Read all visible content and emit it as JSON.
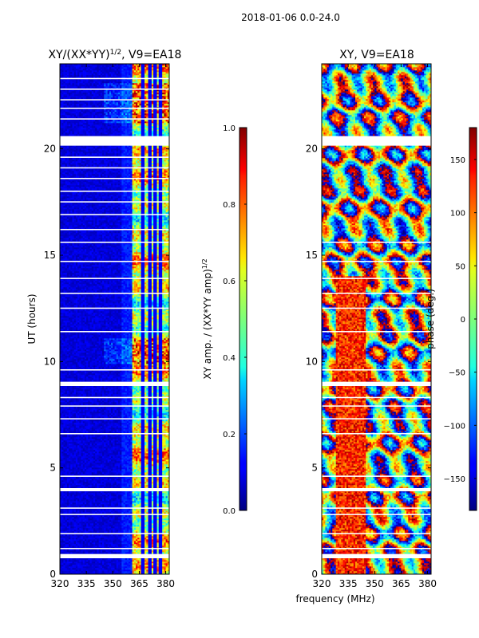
{
  "suptitle": "2018-01-06 0.0-24.0",
  "chart_data": [
    {
      "type": "heatmap",
      "title": "XY/(XX*YY)",
      "title_exponent": "1/2",
      "title_suffix": ", V9=EA18",
      "xlabel": "",
      "ylabel": "UT (hours)",
      "xlim": [
        320,
        382
      ],
      "ylim": [
        0,
        24
      ],
      "xticks": [
        "320",
        "335",
        "350",
        "365",
        "380"
      ],
      "xtick_values": [
        320,
        335,
        350,
        365,
        380
      ],
      "yticks": [
        "0",
        "5",
        "10",
        "15",
        "20"
      ],
      "ytick_values": [
        0,
        5,
        10,
        15,
        20
      ],
      "colorbar": {
        "label": "XY amp. / (XX*YY amp)",
        "label_exponent": "1/2",
        "range": [
          0.0,
          1.0
        ],
        "ticks": [
          "0.0",
          "0.2",
          "0.4",
          "0.6",
          "0.8",
          "1.0"
        ],
        "tick_values": [
          0.0,
          0.2,
          0.4,
          0.6,
          0.8,
          1.0
        ],
        "colormap": "jet"
      },
      "active_band_mhz": [
        361,
        382
      ],
      "notched_channels_mhz": [
        367,
        371,
        374,
        377
      ],
      "high_coherence_periods_ut": [
        [
          9.9,
          11.1
        ],
        [
          21.2,
          23.1
        ]
      ],
      "data_gaps_ut": [
        [
          20.15,
          20.6
        ],
        [
          8.85,
          9.05
        ],
        [
          3.9,
          4.05
        ],
        [
          0.75,
          0.95
        ]
      ]
    },
    {
      "type": "heatmap",
      "title": "XY, V9=EA18",
      "xlabel": "frequency (MHz)",
      "ylabel": "",
      "xlim": [
        320,
        382
      ],
      "ylim": [
        0,
        24
      ],
      "xticks": [
        "320",
        "335",
        "350",
        "365",
        "380"
      ],
      "xtick_values": [
        320,
        335,
        350,
        365,
        380
      ],
      "yticks": [
        "0",
        "5",
        "10",
        "15",
        "20"
      ],
      "ytick_values": [
        0,
        5,
        10,
        15,
        20
      ],
      "colorbar": {
        "label": "phase (deg.)",
        "range": [
          -180,
          180
        ],
        "ticks": [
          "−150",
          "−100",
          "−50",
          "0",
          "50",
          "100",
          "150"
        ],
        "tick_values": [
          -150,
          -100,
          -50,
          0,
          50,
          100,
          150
        ],
        "colormap": "jet"
      },
      "high_phase_region_mhz": [
        328,
        345
      ],
      "data_gaps_ut": [
        [
          20.15,
          20.6
        ],
        [
          8.85,
          9.05
        ],
        [
          3.9,
          4.05
        ],
        [
          0.75,
          0.95
        ]
      ]
    }
  ]
}
